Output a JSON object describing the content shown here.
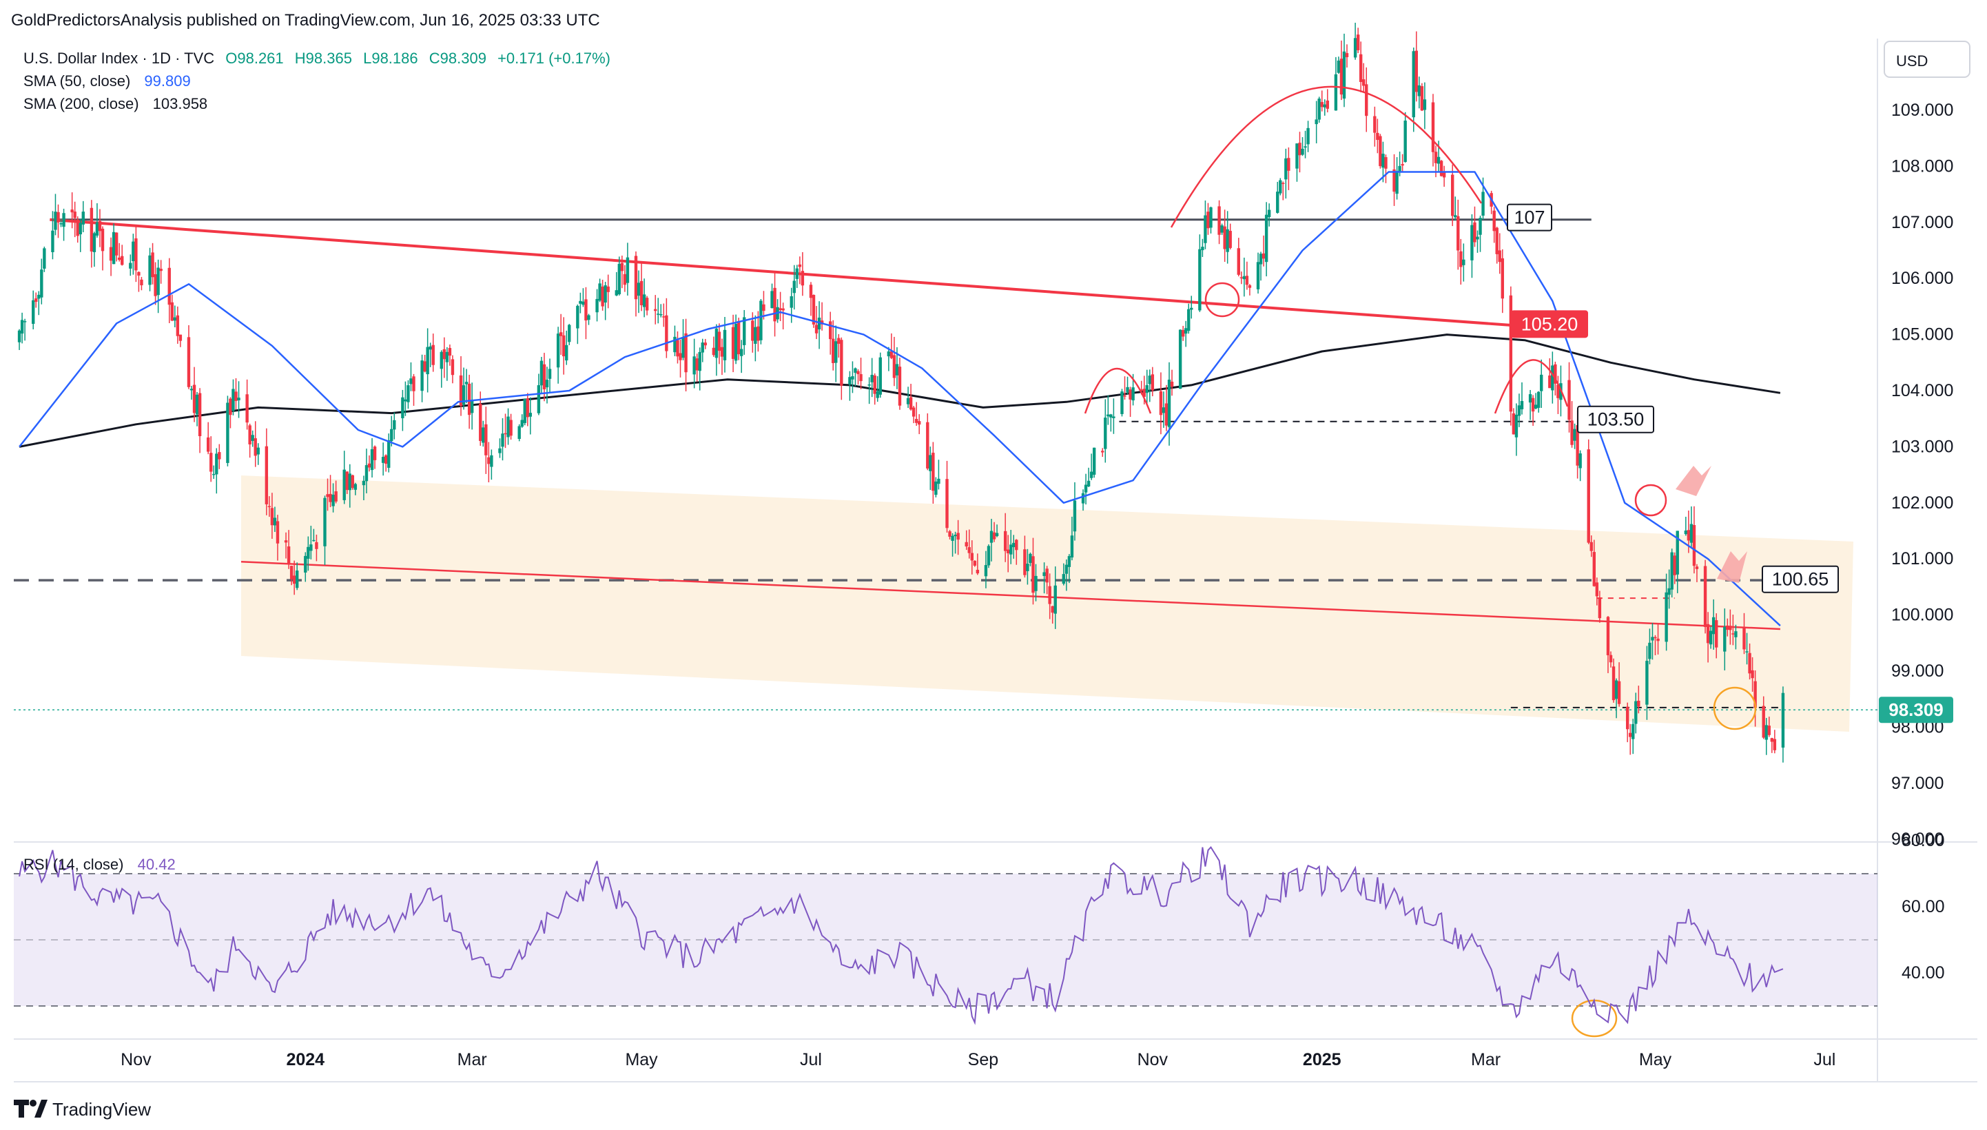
{
  "header": {
    "publisher": "GoldPredictorsAnalysis published on TradingView.com, Jun 16, 2025 03:33 UTC"
  },
  "legend": {
    "symbol": "U.S. Dollar Index · 1D · TVC",
    "open": "O98.261",
    "high": "H98.365",
    "low": "L98.186",
    "close": "C98.309",
    "change": "+0.171 (+0.17%)",
    "sma50_label": "SMA (50, close)",
    "sma50_value": "99.809",
    "sma200_label": "SMA (200, close)",
    "sma200_value": "103.958",
    "rsi_label": "RSI (14, close)",
    "rsi_value": "40.42"
  },
  "price_axis": {
    "currency": "USD",
    "ticks": [
      "109.000",
      "108.000",
      "107.000",
      "106.000",
      "105.000",
      "104.000",
      "103.000",
      "102.000",
      "101.000",
      "100.000",
      "99.000",
      "98.000",
      "97.000",
      "96.000"
    ],
    "last_price_label": "98.309"
  },
  "rsi_axis": {
    "ticks": [
      "80.00",
      "60.00",
      "40.00"
    ]
  },
  "time_axis": {
    "ticks": [
      "Nov",
      "2024",
      "Mar",
      "May",
      "Jul",
      "Sep",
      "Nov",
      "2025",
      "Mar",
      "May",
      "Jul"
    ]
  },
  "level_labels": [
    "107",
    "105.20",
    "103.50",
    "100.65"
  ],
  "footer": {
    "brand": "TradingView"
  },
  "colors": {
    "up": "#089981",
    "down": "#f23645",
    "sma50": "#2962ff",
    "sma200": "#131722",
    "rsi": "#7e57c2",
    "trend": "#f23645",
    "channel": "#fdf0dc",
    "price_tag": "#22ab94",
    "annotation_arrow": "#f7a9a9",
    "circle_orange": "#f7a325"
  },
  "chart_data": {
    "type": "candlestick",
    "interval": "1D",
    "x_range": [
      "2023-09-18",
      "2025-07-20"
    ],
    "y_range": [
      96.0,
      110.0
    ],
    "series": [
      {
        "name": "SMA (50, close)",
        "points": [
          [
            "2023-09-20",
            103.0
          ],
          [
            "2023-10-25",
            105.2
          ],
          [
            "2023-11-20",
            105.9
          ],
          [
            "2023-12-20",
            104.8
          ],
          [
            "2024-01-20",
            103.3
          ],
          [
            "2024-02-05",
            103.0
          ],
          [
            "2024-02-25",
            103.8
          ],
          [
            "2024-04-05",
            104.0
          ],
          [
            "2024-04-25",
            104.6
          ],
          [
            "2024-05-25",
            105.1
          ],
          [
            "2024-06-20",
            105.4
          ],
          [
            "2024-07-20",
            105.0
          ],
          [
            "2024-08-10",
            104.4
          ],
          [
            "2024-09-05",
            103.2
          ],
          [
            "2024-09-30",
            102.0
          ],
          [
            "2024-10-25",
            102.4
          ],
          [
            "2024-11-20",
            104.2
          ],
          [
            "2024-12-25",
            106.5
          ],
          [
            "2025-01-25",
            107.9
          ],
          [
            "2025-02-25",
            107.9
          ],
          [
            "2025-03-25",
            105.6
          ],
          [
            "2025-04-20",
            102.0
          ],
          [
            "2025-05-20",
            101.0
          ],
          [
            "2025-06-15",
            99.81
          ]
        ]
      },
      {
        "name": "SMA (200, close)",
        "points": [
          [
            "2023-09-20",
            103.0
          ],
          [
            "2023-11-01",
            103.4
          ],
          [
            "2023-12-15",
            103.7
          ],
          [
            "2024-02-01",
            103.6
          ],
          [
            "2024-04-01",
            103.9
          ],
          [
            "2024-06-01",
            104.2
          ],
          [
            "2024-07-15",
            104.1
          ],
          [
            "2024-09-01",
            103.7
          ],
          [
            "2024-10-01",
            103.8
          ],
          [
            "2024-11-15",
            104.1
          ],
          [
            "2025-01-01",
            104.7
          ],
          [
            "2025-02-15",
            105.0
          ],
          [
            "2025-03-15",
            104.9
          ],
          [
            "2025-04-15",
            104.5
          ],
          [
            "2025-05-15",
            104.2
          ],
          [
            "2025-06-15",
            103.96
          ]
        ]
      }
    ],
    "price_path": [
      [
        "2023-09-20",
        104.8
      ],
      [
        "2023-10-03",
        107.1
      ],
      [
        "2023-10-25",
        106.6
      ],
      [
        "2023-11-10",
        105.9
      ],
      [
        "2023-11-28",
        102.7
      ],
      [
        "2023-12-08",
        104.1
      ],
      [
        "2023-12-20",
        101.9
      ],
      [
        "2023-12-28",
        100.7
      ],
      [
        "2024-01-15",
        102.5
      ],
      [
        "2024-02-01",
        103.0
      ],
      [
        "2024-02-14",
        104.8
      ],
      [
        "2024-03-01",
        103.8
      ],
      [
        "2024-03-08",
        102.7
      ],
      [
        "2024-03-25",
        104.2
      ],
      [
        "2024-04-10",
        105.5
      ],
      [
        "2024-04-26",
        106.2
      ],
      [
        "2024-05-15",
        104.6
      ],
      [
        "2024-05-30",
        104.8
      ],
      [
        "2024-06-10",
        105.1
      ],
      [
        "2024-06-26",
        106.0
      ],
      [
        "2024-07-15",
        104.1
      ],
      [
        "2024-07-30",
        104.4
      ],
      [
        "2024-08-10",
        103.0
      ],
      [
        "2024-08-27",
        100.8
      ],
      [
        "2024-09-05",
        101.4
      ],
      [
        "2024-09-15",
        100.9
      ],
      [
        "2024-09-27",
        100.3
      ],
      [
        "2024-10-10",
        102.9
      ],
      [
        "2024-10-30",
        104.3
      ],
      [
        "2024-11-06",
        103.7
      ],
      [
        "2024-11-22",
        107.4
      ],
      [
        "2024-12-06",
        105.8
      ],
      [
        "2024-12-20",
        108.2
      ],
      [
        "2025-01-13",
        110.0
      ],
      [
        "2025-01-27",
        107.2
      ],
      [
        "2025-02-03",
        109.8
      ],
      [
        "2025-02-20",
        106.4
      ],
      [
        "2025-03-03",
        107.6
      ],
      [
        "2025-03-11",
        103.4
      ],
      [
        "2025-03-25",
        104.4
      ],
      [
        "2025-04-04",
        102.8
      ],
      [
        "2025-04-12",
        99.4
      ],
      [
        "2025-04-21",
        98.0
      ],
      [
        "2025-04-30",
        99.5
      ],
      [
        "2025-05-12",
        101.8
      ],
      [
        "2025-05-21",
        99.6
      ],
      [
        "2025-05-28",
        100.0
      ],
      [
        "2025-06-05",
        98.7
      ],
      [
        "2025-06-12",
        97.6
      ],
      [
        "2025-06-16",
        98.309
      ]
    ],
    "last": {
      "date": "2025-06-16",
      "open": 98.261,
      "high": 98.365,
      "low": 98.186,
      "close": 98.309,
      "change": 0.171,
      "change_pct": 0.17
    },
    "levels": [
      107.0,
      105.2,
      103.5,
      100.65
    ],
    "rsi": {
      "name": "RSI (14, close)",
      "y_range": [
        20,
        90
      ],
      "bands": [
        70,
        50,
        30
      ],
      "points": [
        [
          "2023-09-20",
          70
        ],
        [
          "2023-10-03",
          73
        ],
        [
          "2023-10-20",
          62
        ],
        [
          "2023-11-10",
          60
        ],
        [
          "2023-11-28",
          35
        ],
        [
          "2023-12-08",
          50
        ],
        [
          "2023-12-20",
          33
        ],
        [
          "2024-01-10",
          58
        ],
        [
          "2024-02-01",
          56
        ],
        [
          "2024-02-14",
          65
        ],
        [
          "2024-03-08",
          38
        ],
        [
          "2024-04-15",
          70
        ],
        [
          "2024-05-01",
          52
        ],
        [
          "2024-05-20",
          44
        ],
        [
          "2024-06-10",
          55
        ],
        [
          "2024-06-26",
          62
        ],
        [
          "2024-07-15",
          40
        ],
        [
          "2024-08-01",
          46
        ],
        [
          "2024-08-27",
          28
        ],
        [
          "2024-09-15",
          38
        ],
        [
          "2024-09-27",
          32
        ],
        [
          "2024-10-15",
          70
        ],
        [
          "2024-11-05",
          64
        ],
        [
          "2024-11-22",
          76
        ],
        [
          "2024-12-06",
          55
        ],
        [
          "2024-12-20",
          68
        ],
        [
          "2025-01-13",
          68
        ],
        [
          "2025-02-05",
          58
        ],
        [
          "2025-02-25",
          47
        ],
        [
          "2025-03-11",
          28
        ],
        [
          "2025-03-25",
          45
        ],
        [
          "2025-04-12",
          30
        ],
        [
          "2025-04-21",
          28
        ],
        [
          "2025-05-12",
          56
        ],
        [
          "2025-05-25",
          45
        ],
        [
          "2025-06-05",
          38
        ],
        [
          "2025-06-16",
          40.42
        ]
      ]
    },
    "grid": true,
    "legend_position": "top-left"
  }
}
